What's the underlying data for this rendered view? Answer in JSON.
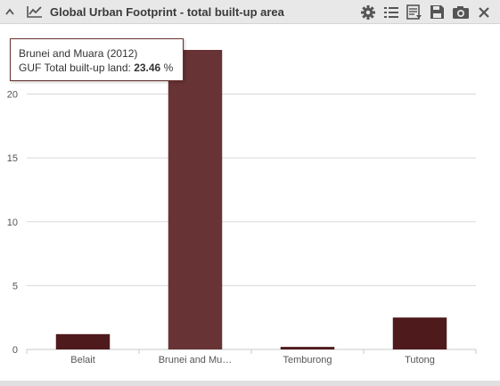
{
  "header": {
    "title": "Global Urban Footprint - total built-up area",
    "icons": [
      "chevron-up-icon",
      "line-chart-icon",
      "gear-icon",
      "list-icon",
      "table-export-icon",
      "save-icon",
      "camera-icon",
      "close-icon"
    ]
  },
  "tooltip": {
    "title": "Brunei and Muara (2012)",
    "label": "GUF Total built-up land:",
    "value": "23.46",
    "unit": "%"
  },
  "colors": {
    "bar": "#4f1a1c",
    "bar_highlight": "#683335",
    "grid": "#d8d8d8",
    "header_bg": "#e8e8e8"
  },
  "chart_data": {
    "type": "bar",
    "categories": [
      "Belait",
      "Brunei and Mu…",
      "Temburong",
      "Tutong"
    ],
    "values": [
      1.2,
      23.46,
      0.2,
      2.5
    ],
    "highlighted_index": 1,
    "yticks": [
      0,
      5,
      10,
      15,
      20
    ],
    "ylim": [
      0,
      23.46
    ],
    "title": "",
    "xlabel": "",
    "ylabel": "",
    "grid": true
  }
}
